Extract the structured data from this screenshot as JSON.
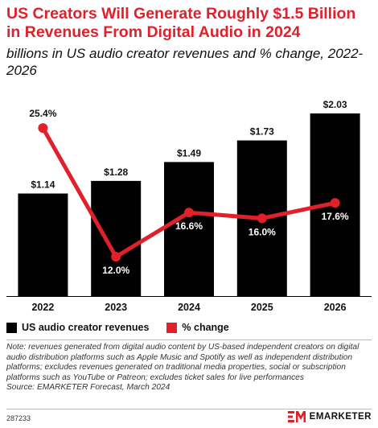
{
  "header": {
    "title": "US Creators Will Generate Roughly $1.5 Billion in Revenues From Digital Audio in 2024",
    "subtitle": "billions in US audio creator revenues and % change, 2022-2026"
  },
  "chart_data": {
    "type": "bar",
    "categories": [
      "2022",
      "2023",
      "2024",
      "2025",
      "2026"
    ],
    "series": [
      {
        "name": "US audio creator revenues",
        "type": "bar",
        "values": [
          1.14,
          1.28,
          1.49,
          1.73,
          2.03
        ],
        "labels": [
          "$1.14",
          "$1.28",
          "$1.49",
          "$1.73",
          "$2.03"
        ],
        "color": "#000000"
      },
      {
        "name": "% change",
        "type": "line",
        "values": [
          25.4,
          12.0,
          16.6,
          16.0,
          17.6
        ],
        "labels": [
          "25.4%",
          "12.0%",
          "16.6%",
          "16.0%",
          "17.6%"
        ],
        "color": "#e0212c"
      }
    ],
    "ylim_bars": [
      0,
      2.2
    ],
    "ylim_line": [
      10,
      27
    ],
    "grid": false,
    "legend_position": "bottom-left"
  },
  "legend": {
    "bar_label": "US audio creator revenues",
    "line_label": "% change"
  },
  "notes": {
    "note": "Note: revenues generated from digital audio content by US-based independent creators on digital audio distribution platforms such as Apple Music and Spotify as well as independent distribution platforms; excludes revenues generated on traditional media properties, social or subscription platforms such as YouTube or Patreon; excludes ticket sales for live performances",
    "source": "Source: EMARKETER Forecast, March 2024"
  },
  "footer": {
    "chart_id": "287233",
    "brand": "EMARKETER"
  },
  "colors": {
    "accent": "#e0212c",
    "bar": "#000000"
  }
}
